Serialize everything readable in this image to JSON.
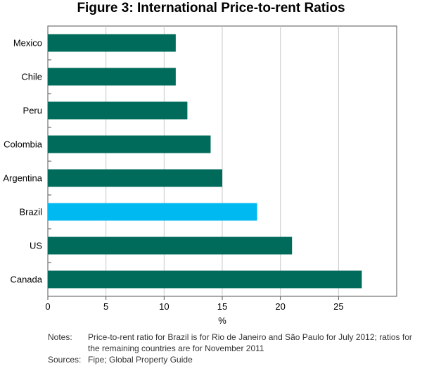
{
  "chart_data": {
    "type": "bar",
    "orientation": "horizontal",
    "title": "Figure 3: International Price-to-rent Ratios",
    "xlabel": "%",
    "ylabel": "",
    "xlim": [
      0,
      30
    ],
    "xticks": [
      0,
      5,
      10,
      15,
      20,
      25
    ],
    "grid": true,
    "categories": [
      "Mexico",
      "Chile",
      "Peru",
      "Colombia",
      "Argentina",
      "Brazil",
      "US",
      "Canada"
    ],
    "values": [
      11,
      11,
      12,
      14,
      15,
      18,
      21,
      27
    ],
    "bar_colors": [
      "#006b5b",
      "#006b5b",
      "#006b5b",
      "#006b5b",
      "#006b5b",
      "#00b9f0",
      "#006b5b",
      "#006b5b"
    ]
  },
  "footnotes": {
    "notes_label": "Notes:",
    "notes_text": "Price-to-rent ratio for Brazil is for Rio de Janeiro and São Paulo for July 2012; ratios for the remaining countries are for November 2011",
    "sources_label": "Sources:",
    "sources_text": "Fipe; Global Property Guide"
  }
}
